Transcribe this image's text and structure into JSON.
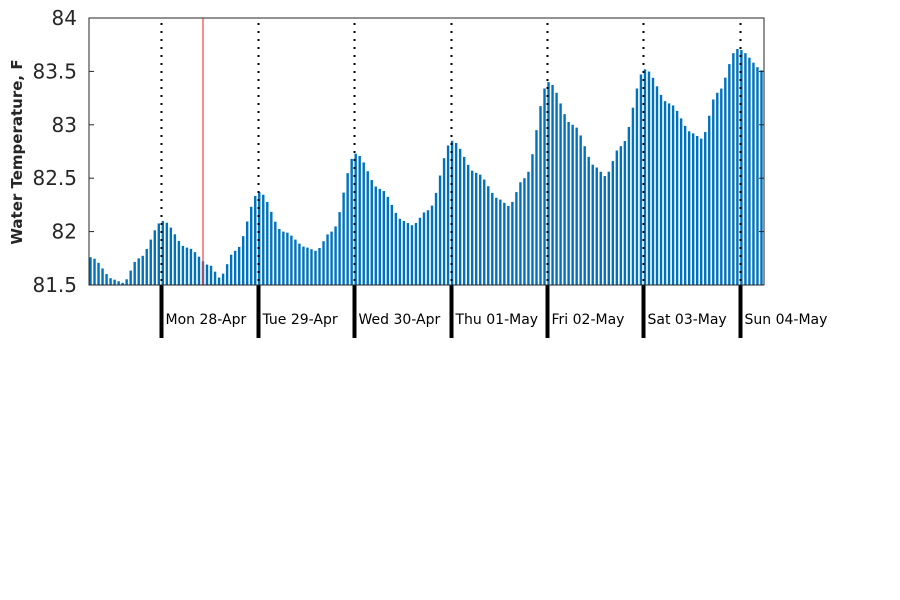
{
  "chart_data": {
    "type": "bar",
    "title": "",
    "xlabel": "",
    "ylabel": "Water Temperature, F",
    "ylim": [
      81.5,
      84
    ],
    "yticks": [
      "81.5",
      "82",
      "82.5",
      "83",
      "83.5",
      "84"
    ],
    "x_unit": "hours since start of plotted window (about 06:00, Sun 27-Apr)",
    "day_labels": [
      "Mon 28-Apr",
      "Tue 29-Apr",
      "Wed 30-Apr",
      "Thu 01-May",
      "Fri 02-May",
      "Sat 03-May",
      "Sun 04-May"
    ],
    "marker_line": {
      "color": "#ff4040"
    },
    "bar_color": "#0072BD",
    "grid": false,
    "legend": "none",
    "keypoints": [
      [
        0,
        81.76
      ],
      [
        6,
        81.55
      ],
      [
        8,
        81.52
      ],
      [
        12,
        81.75
      ],
      [
        18,
        82.1
      ],
      [
        24,
        81.85
      ],
      [
        30,
        81.68
      ],
      [
        32,
        81.57
      ],
      [
        36,
        81.82
      ],
      [
        42,
        82.37
      ],
      [
        48,
        82.0
      ],
      [
        54,
        81.85
      ],
      [
        56,
        81.82
      ],
      [
        60,
        82.0
      ],
      [
        66,
        82.73
      ],
      [
        72,
        82.4
      ],
      [
        78,
        82.1
      ],
      [
        80,
        82.06
      ],
      [
        84,
        82.2
      ],
      [
        90,
        82.85
      ],
      [
        96,
        82.55
      ],
      [
        102,
        82.3
      ],
      [
        104,
        82.24
      ],
      [
        108,
        82.5
      ],
      [
        114,
        83.4
      ],
      [
        120,
        83.0
      ],
      [
        126,
        82.6
      ],
      [
        128,
        82.52
      ],
      [
        132,
        82.8
      ],
      [
        138,
        83.52
      ],
      [
        144,
        83.2
      ],
      [
        150,
        82.92
      ],
      [
        152,
        82.87
      ],
      [
        156,
        83.3
      ],
      [
        161,
        83.71
      ],
      [
        168,
        83.5
      ]
    ]
  }
}
